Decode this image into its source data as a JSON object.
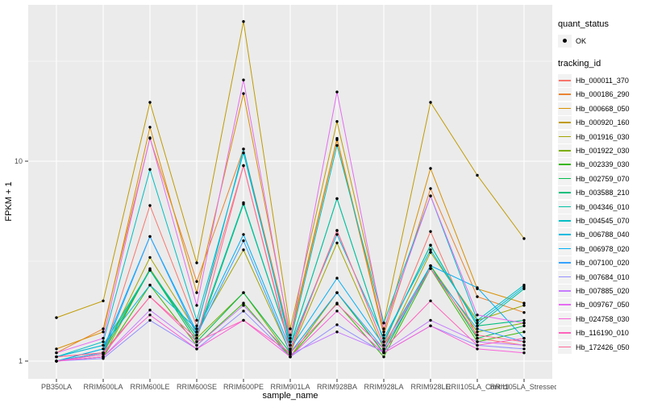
{
  "chart_data": {
    "type": "line",
    "title": "",
    "xlabel": "sample_name",
    "ylabel": "FPKM + 1",
    "y_scale": "log10",
    "y_ticks": [
      "1",
      "10"
    ],
    "y_tick_values": [
      1,
      10
    ],
    "y_minor_values": [
      3.1623,
      31.623
    ],
    "ylim": [
      0.82,
      60
    ],
    "grid": true,
    "legend_position": "right",
    "panel_bg": "#EBEBEB",
    "grid_color": "#FFFFFF",
    "point_color": "#000000",
    "categories": [
      "PB350LA",
      "RRIM600LA",
      "RRIM600LE",
      "RRIM600SE",
      "RRIM600PE",
      "RRIM901LA",
      "RRIM928BA",
      "RRIM928LA",
      "RRIM928LE",
      "RRII105LA_Control",
      "RRII105LA_Stressed"
    ],
    "series": [
      {
        "name": "Hb_000011_370",
        "color": "#F8766D",
        "values": [
          1.05,
          1.1,
          6.0,
          1.5,
          9.5,
          1.15,
          4.5,
          1.2,
          4.45,
          1.3,
          1.2
        ]
      },
      {
        "name": "Hb_000186_290",
        "color": "#EA8331",
        "values": [
          1.1,
          1.45,
          13.0,
          2.5,
          11.5,
          1.3,
          12.8,
          1.35,
          7.3,
          2.1,
          1.75
        ]
      },
      {
        "name": "Hb_000668_050",
        "color": "#D89000",
        "values": [
          1.15,
          1.4,
          14.8,
          2.2,
          21.8,
          1.35,
          13.0,
          1.4,
          9.2,
          2.3,
          1.95
        ]
      },
      {
        "name": "Hb_000920_160",
        "color": "#C09B00",
        "values": [
          1.65,
          2.0,
          19.7,
          3.1,
          50.0,
          1.45,
          15.8,
          1.55,
          19.7,
          8.5,
          4.1
        ]
      },
      {
        "name": "Hb_001916_030",
        "color": "#A3A500",
        "values": [
          1.0,
          1.1,
          3.3,
          1.4,
          3.6,
          1.1,
          3.9,
          1.15,
          3.5,
          1.6,
          1.9
        ]
      },
      {
        "name": "Hb_001922_030",
        "color": "#7CAE00",
        "values": [
          1.0,
          1.05,
          2.9,
          1.3,
          2.2,
          1.05,
          2.2,
          1.1,
          3.0,
          1.4,
          1.55
        ]
      },
      {
        "name": "Hb_002339_030",
        "color": "#39B600",
        "values": [
          1.0,
          1.05,
          2.4,
          1.2,
          1.95,
          1.05,
          1.95,
          1.05,
          2.9,
          1.25,
          1.4
        ]
      },
      {
        "name": "Hb_002759_070",
        "color": "#00BB4E",
        "values": [
          1.0,
          1.1,
          2.85,
          1.25,
          2.2,
          1.1,
          2.2,
          1.1,
          3.0,
          1.3,
          1.5
        ]
      },
      {
        "name": "Hb_003588_210",
        "color": "#00BF7D",
        "values": [
          1.0,
          1.15,
          2.85,
          1.3,
          6.1,
          1.2,
          6.5,
          1.25,
          3.8,
          1.5,
          1.6
        ]
      },
      {
        "name": "Hb_004346_010",
        "color": "#00C1A3",
        "values": [
          1.05,
          1.2,
          2.85,
          1.35,
          6.2,
          1.2,
          6.5,
          1.25,
          3.8,
          1.5,
          2.3
        ]
      },
      {
        "name": "Hb_004545_070",
        "color": "#00BFC4",
        "values": [
          1.05,
          1.25,
          9.1,
          1.6,
          11.0,
          1.25,
          12.0,
          1.55,
          6.7,
          1.6,
          2.4
        ]
      },
      {
        "name": "Hb_006788_040",
        "color": "#00BAE0",
        "values": [
          1.05,
          1.2,
          2.4,
          1.45,
          11.5,
          1.2,
          4.3,
          1.3,
          3.6,
          1.55,
          2.35
        ]
      },
      {
        "name": "Hb_006978_020",
        "color": "#00B0F6",
        "values": [
          1.0,
          1.15,
          4.2,
          1.4,
          4.3,
          1.15,
          2.6,
          1.2,
          3.0,
          2.33,
          1.3
        ]
      },
      {
        "name": "Hb_007100_020",
        "color": "#35A2FF",
        "values": [
          1.0,
          1.1,
          4.2,
          1.35,
          4.0,
          1.1,
          2.2,
          1.15,
          2.9,
          1.45,
          1.25
        ]
      },
      {
        "name": "Hb_007684_010",
        "color": "#9590FF",
        "values": [
          1.0,
          1.03,
          1.6,
          1.15,
          1.78,
          1.05,
          1.52,
          1.1,
          1.5,
          1.2,
          1.15
        ]
      },
      {
        "name": "Hb_007885_020",
        "color": "#C77CFF",
        "values": [
          1.0,
          1.05,
          1.8,
          1.2,
          1.9,
          1.08,
          1.4,
          1.12,
          1.6,
          1.25,
          1.2
        ]
      },
      {
        "name": "Hb_009767_050",
        "color": "#E76BF3",
        "values": [
          1.1,
          1.3,
          13.1,
          1.9,
          25.5,
          1.3,
          22.2,
          1.45,
          6.7,
          1.7,
          1.55
        ]
      },
      {
        "name": "Hb_024758_030",
        "color": "#FA62DB",
        "values": [
          1.0,
          1.05,
          1.7,
          1.15,
          1.6,
          1.05,
          1.78,
          1.1,
          1.5,
          1.15,
          1.1
        ]
      },
      {
        "name": "Hb_116190_010",
        "color": "#FF62BC",
        "values": [
          1.0,
          1.08,
          2.1,
          1.25,
          1.6,
          1.1,
          1.93,
          1.15,
          2.0,
          1.2,
          1.3
        ]
      },
      {
        "name": "Hb_172426_050",
        "color": "#FF6A98",
        "values": [
          1.05,
          1.1,
          2.1,
          1.3,
          9.5,
          1.12,
          4.5,
          1.2,
          2.9,
          1.35,
          1.25
        ]
      }
    ]
  },
  "legend": {
    "quant_status_title": "quant_status",
    "quant_status_items": [
      {
        "label": "OK"
      }
    ],
    "tracking_id_title": "tracking_id"
  }
}
